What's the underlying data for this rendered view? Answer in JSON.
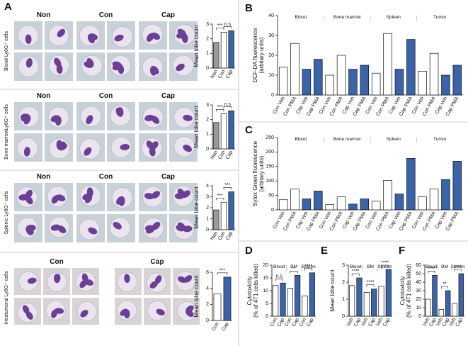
{
  "figure": {
    "panels": [
      "A",
      "B",
      "C",
      "D",
      "E",
      "F"
    ],
    "cell_rows": [
      {
        "label": "Blood Ly6G⁺ cells",
        "columns": [
          "Non",
          "Con",
          "Cap"
        ]
      },
      {
        "label": "Bone marrowLy6G⁺ cells",
        "columns": [
          "Non",
          "Con",
          "Cap"
        ]
      },
      {
        "label": "Splenic Ly6G⁺ cells",
        "columns": [
          "Non",
          "Con",
          "Cap"
        ]
      },
      {
        "label": "Intratumoral Ly6G⁺ cells",
        "columns": [
          "Con",
          "Cap"
        ]
      }
    ]
  },
  "chart_data": [
    {
      "type": "bar",
      "ylabel": [
        "Mean lobe count"
      ],
      "categories": [
        "Non",
        "Con",
        "Cap"
      ],
      "values": [
        1.75,
        2.45,
        2.55
      ],
      "colors": [
        "#9a9a9a",
        "#ffffff",
        "#3a63a8"
      ],
      "ylim": [
        0,
        3
      ],
      "yticks": [
        0,
        1,
        2,
        3
      ],
      "annotations": [
        "***",
        "n.s"
      ]
    },
    {
      "type": "bar",
      "ylabel": [
        "Mean lobe count"
      ],
      "categories": [
        "Non",
        "Con",
        "Cap"
      ],
      "values": [
        1.8,
        2.4,
        2.6
      ],
      "colors": [
        "#9a9a9a",
        "#ffffff",
        "#3a63a8"
      ],
      "ylim": [
        0,
        3
      ],
      "yticks": [
        0,
        1,
        2,
        3
      ],
      "annotations": [
        "***",
        "n.s"
      ]
    },
    {
      "type": "bar",
      "ylabel": [
        "Mean lobe count"
      ],
      "categories": [
        "Non",
        "Con",
        "Cap"
      ],
      "values": [
        1.8,
        2.5,
        3.45
      ],
      "colors": [
        "#9a9a9a",
        "#ffffff",
        "#3a63a8"
      ],
      "ylim": [
        0,
        4
      ],
      "yticks": [
        0,
        1,
        2,
        3,
        4
      ],
      "annotations": [
        "***",
        "***"
      ]
    },
    {
      "type": "bar",
      "ylabel": [
        "Mean lobe count"
      ],
      "categories": [
        "Con",
        "Cap"
      ],
      "values": [
        3.3,
        5.4
      ],
      "colors": [
        "#ffffff",
        "#3a63a8"
      ],
      "ylim": [
        0,
        6
      ],
      "yticks": [
        0,
        2,
        4,
        6
      ],
      "annotations": [
        "***"
      ]
    },
    {
      "type": "bar",
      "ylabel": [
        "DCF-DA fluorescence",
        "(arbitary units)"
      ],
      "groups": [
        "Blood",
        "Bone marrow",
        "Spleen",
        "Tumor"
      ],
      "categories": [
        "Con Veh",
        "Con PMA",
        "Cap Veh",
        "Cap PMA",
        "Con Veh",
        "Con PMA",
        "Cap Veh",
        "Cap PMA",
        "Con Veh",
        "Con PMA",
        "Cap Veh",
        "Cap PMA",
        "Con Veh",
        "Con PMA",
        "Cap Veh",
        "Cap PMA"
      ],
      "values": [
        14,
        26,
        13,
        18,
        10,
        20,
        13,
        15,
        11,
        31,
        13,
        28,
        12,
        21,
        10,
        15
      ],
      "colors": [
        "#ffffff",
        "#ffffff",
        "#3a63a8",
        "#3a63a8",
        "#ffffff",
        "#ffffff",
        "#3a63a8",
        "#3a63a8",
        "#ffffff",
        "#ffffff",
        "#3a63a8",
        "#3a63a8",
        "#ffffff",
        "#ffffff",
        "#3a63a8",
        "#3a63a8"
      ],
      "ylim": [
        0,
        40
      ],
      "yticks": [
        0,
        10,
        20,
        30,
        40
      ]
    },
    {
      "type": "bar",
      "ylabel": [
        "Sytox Green fluorescence",
        "(arbitary units)"
      ],
      "groups": [
        "Blood",
        "Bone marrow",
        "Spleen",
        "Tumor"
      ],
      "categories": [
        "Con Veh",
        "Con PMA",
        "Cap Veh",
        "Cap PMA",
        "Con Veh",
        "Con PMA",
        "Cap Veh",
        "Cap PMA",
        "Con Veh",
        "Con PMA",
        "Cap Veh",
        "Cap PMA",
        "Con Veh",
        "Con PMA",
        "Cap Veh",
        "Cap PMA"
      ],
      "values": [
        35,
        72,
        38,
        65,
        18,
        45,
        20,
        38,
        30,
        102,
        55,
        178,
        45,
        72,
        105,
        168
      ],
      "colors": [
        "#ffffff",
        "#ffffff",
        "#3a63a8",
        "#3a63a8",
        "#ffffff",
        "#ffffff",
        "#3a63a8",
        "#3a63a8",
        "#ffffff",
        "#ffffff",
        "#3a63a8",
        "#3a63a8",
        "#ffffff",
        "#ffffff",
        "#3a63a8",
        "#3a63a8"
      ],
      "ylim": [
        0,
        250
      ],
      "yticks": [
        0,
        50,
        100,
        150,
        200,
        250
      ]
    },
    {
      "type": "bar",
      "ylabel": [
        "Cytotoxicity",
        "(% of 4T1 cells killed)"
      ],
      "groups": [
        "Blood",
        "BM",
        "Spleen"
      ],
      "categories": [
        "Con",
        "Cap",
        "Con",
        "Cap",
        "Con",
        "Cap"
      ],
      "values": [
        12,
        13,
        11,
        16,
        8,
        17
      ],
      "colors": [
        "#ffffff",
        "#3a63a8",
        "#ffffff",
        "#3a63a8",
        "#ffffff",
        "#3a63a8"
      ],
      "ylim": [
        0,
        20
      ],
      "yticks": [
        0,
        5,
        10,
        15,
        20
      ],
      "annotations": [
        "n.s",
        "*",
        "****"
      ]
    },
    {
      "type": "bar",
      "ylabel": [
        "Mean lobe count"
      ],
      "groups": [
        "Blood",
        "BM",
        "Spleen"
      ],
      "categories": [
        "Veh",
        "Cap",
        "Veh",
        "Cap",
        "Veh",
        "Cap"
      ],
      "values": [
        1.8,
        2.25,
        1.4,
        1.6,
        1.75,
        2.75
      ],
      "colors": [
        "#ffffff",
        "#3a63a8",
        "#ffffff",
        "#3a63a8",
        "#ffffff",
        "#3a63a8"
      ],
      "ylim": [
        0,
        3
      ],
      "yticks": [
        0,
        1,
        2,
        3
      ],
      "annotations": [
        "****",
        "****",
        "****"
      ]
    },
    {
      "type": "bar",
      "ylabel": [
        "Cytotoxicity",
        "(% of 4T1 cells killed)"
      ],
      "groups": [
        "Blood",
        "BM",
        "Spleen"
      ],
      "categories": [
        "Veh",
        "Cap",
        "Veh",
        "Cap",
        "Veh",
        "Cap"
      ],
      "values": [
        20,
        48,
        8,
        30,
        15,
        50
      ],
      "colors": [
        "#ffffff",
        "#3a63a8",
        "#ffffff",
        "#3a63a8",
        "#ffffff",
        "#3a63a8"
      ],
      "ylim": [
        0,
        60
      ],
      "yticks": [
        0,
        10,
        20,
        30,
        40,
        50,
        60
      ],
      "annotations": [
        "****",
        "**",
        "****"
      ]
    }
  ]
}
